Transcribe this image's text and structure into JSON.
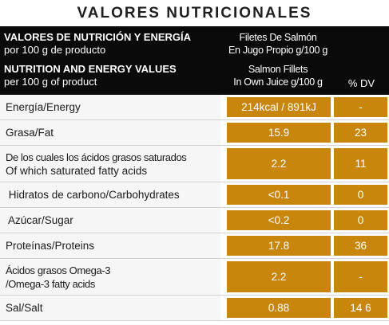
{
  "title": "VALORES NUTRICIONALES",
  "header": {
    "es_label_line1": "VALORES DE NUTRICIÓN Y ENERGÍA",
    "es_label_line2": "por 100 g de producto",
    "es_product_line1": "Filetes De Salmón",
    "es_product_line2": "En Jugo Propio g/100 g",
    "en_label_line1": "NUTRITION AND ENERGY VALUES",
    "en_label_line2": "per 100 g of product",
    "en_product_line1": "Salmon Fillets",
    "en_product_line2": "In Own Juice g/100 g",
    "dv_label": "% DV"
  },
  "rows": [
    {
      "name": "Energía/Energy",
      "value": "214kcal / 891kJ",
      "dv": "-"
    },
    {
      "name": "Grasa/Fat",
      "value": "15.9",
      "dv": "23"
    },
    {
      "name_line1": "De los cuales los ácidos grasos saturados",
      "name_line2": "Of which saturated fatty acids",
      "value": "2.2",
      "dv": "11"
    },
    {
      "name": " Hidratos de carbono/Carbohydrates",
      "value": "<0.1",
      "dv": "0"
    },
    {
      "name": " Azúcar/Sugar",
      "value": "<0.2",
      "dv": "0"
    },
    {
      "name": "Proteínas/Proteins",
      "value": "17.8",
      "dv": "36"
    },
    {
      "name_line1": "Ácidos grasos Omega-3",
      "name_line2": "/Omega-3 fatty acids",
      "value": "2.2",
      "dv": "-"
    },
    {
      "name": "Sal/Salt",
      "value": "0.88",
      "dv": "14 6"
    }
  ],
  "colors": {
    "accent": "#c8860d",
    "header_bg": "#0a0a0a",
    "row_bg": "#f6f6f6"
  }
}
